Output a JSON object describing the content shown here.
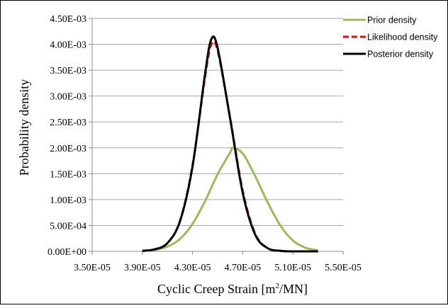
{
  "chart_data": {
    "type": "line",
    "title": "",
    "xlabel": "Cyclic Creep Strain [m",
    "xlabel_sup": "2",
    "xlabel_tail": "/MN]",
    "ylabel": "Probability density",
    "xlim": [
      3.5e-05,
      5.5e-05
    ],
    "ylim": [
      0,
      0.0045
    ],
    "x_tick_values": [
      3.5e-05,
      3.9e-05,
      4.3e-05,
      4.7e-05,
      5.1e-05,
      5.5e-05
    ],
    "x_tick_labels": [
      "3.50E-05",
      "3.90E-05",
      "4.30E-05",
      "4.70E-05",
      "5.10E-05",
      "5.50E-05"
    ],
    "y_tick_values": [
      0,
      0.0005,
      0.001,
      0.0015,
      0.002,
      0.0025,
      0.003,
      0.0035,
      0.004,
      0.0045
    ],
    "y_tick_labels": [
      "0.00E+00",
      "5.00E-04",
      "1.00E-03",
      "1.50E-03",
      "2.00E-03",
      "2.50E-03",
      "3.00E-03",
      "3.50E-03",
      "4.00E-03",
      "4.50E-03"
    ],
    "grid": "horizontal",
    "legend_position": "top-right",
    "series": [
      {
        "name": "Prior density",
        "color": "#9bbb59",
        "dash": "solid",
        "x": [
          3.9e-05,
          4e-05,
          4.1e-05,
          4.2e-05,
          4.3e-05,
          4.4e-05,
          4.5e-05,
          4.6e-05,
          4.62e-05,
          4.7e-05,
          4.8e-05,
          4.9e-05,
          5e-05,
          5.1e-05,
          5.2e-05,
          5.3e-05
        ],
        "y": [
          1e-05,
          3e-05,
          9e-05,
          0.00024,
          0.00053,
          0.00097,
          0.00149,
          0.00191,
          0.002,
          0.00189,
          0.00145,
          0.00094,
          0.0005,
          0.00021,
          7e-05,
          2e-05
        ]
      },
      {
        "name": "Likelihood density",
        "color": "#ff0000",
        "dash": "dashed",
        "x": [
          3.9e-05,
          4e-05,
          4.1e-05,
          4.2e-05,
          4.3e-05,
          4.4e-05,
          4.45e-05,
          4.5e-05,
          4.6e-05,
          4.7e-05,
          4.8e-05,
          4.9e-05,
          5e-05,
          5.1e-05,
          5.2e-05,
          5.3e-05
        ],
        "y": [
          1e-05,
          4e-05,
          0.00016,
          0.00059,
          0.00166,
          0.00337,
          0.004,
          0.00388,
          0.00257,
          0.00117,
          0.00034,
          6e-05,
          1e-05,
          0.0,
          0.0,
          0.0
        ]
      },
      {
        "name": "Posterior density",
        "color": "#000000",
        "dash": "solid",
        "x": [
          3.9e-05,
          4e-05,
          4.1e-05,
          4.2e-05,
          4.3e-05,
          4.4e-05,
          4.45e-05,
          4.5e-05,
          4.6e-05,
          4.7e-05,
          4.8e-05,
          4.9e-05,
          5e-05,
          5.1e-05,
          5.2e-05,
          5.3e-05
        ],
        "y": [
          1e-05,
          4e-05,
          0.00016,
          0.00058,
          0.00164,
          0.00343,
          0.0041,
          0.00393,
          0.00256,
          0.00113,
          0.00032,
          6e-05,
          1e-05,
          0.0,
          0.0,
          0.0
        ]
      }
    ]
  }
}
